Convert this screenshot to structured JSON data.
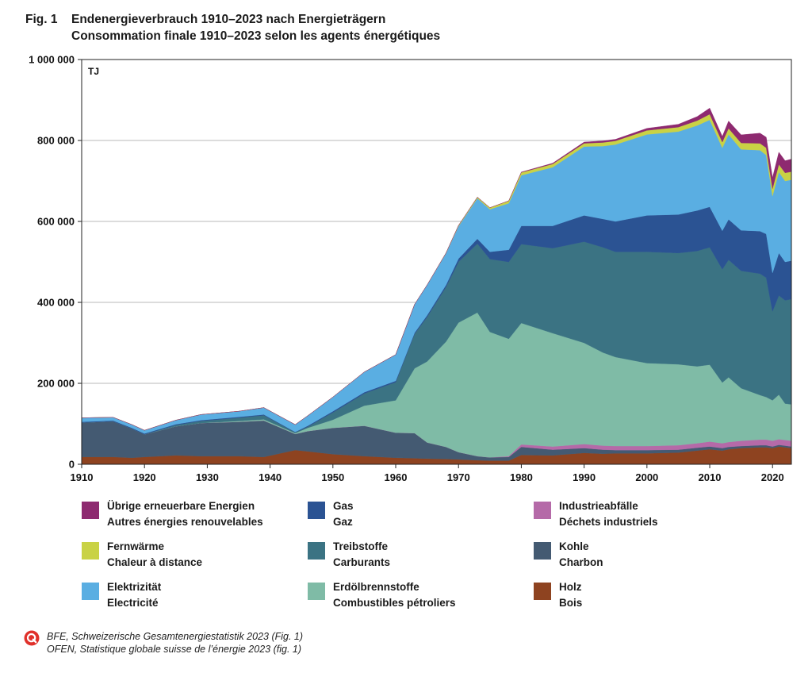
{
  "figure": {
    "number": "Fig. 1",
    "title_de": "Endenergieverbrauch 1910–2023 nach Energieträgern",
    "title_fr": "Consommation finale 1910–2023 selon les agents énergétiques"
  },
  "chart_data": {
    "type": "area",
    "stacked": true,
    "unit_label": "TJ",
    "xlim": [
      1910,
      2023
    ],
    "ylim": [
      0,
      1000000
    ],
    "x_ticks": [
      1910,
      1920,
      1930,
      1940,
      1950,
      1960,
      1970,
      1980,
      1990,
      2000,
      2010,
      2020
    ],
    "y_ticks": [
      0,
      200000,
      400000,
      600000,
      800000,
      1000000
    ],
    "y_tick_labels": [
      "0",
      "200 000",
      "400 000",
      "600 000",
      "800 000",
      "1 000 000"
    ],
    "grid": "horizontal",
    "x": [
      1910,
      1915,
      1918,
      1920,
      1925,
      1929,
      1935,
      1939,
      1944,
      1946,
      1950,
      1955,
      1960,
      1963,
      1965,
      1968,
      1970,
      1973,
      1975,
      1978,
      1980,
      1985,
      1990,
      1993,
      1995,
      2000,
      2005,
      2008,
      2010,
      2012,
      2013,
      2015,
      2018,
      2019,
      2020,
      2021,
      2022,
      2023
    ],
    "series": [
      {
        "name": "Holz",
        "name_fr": "Bois",
        "color": "#8e4320",
        "values": [
          18000,
          18000,
          16000,
          18000,
          22000,
          20000,
          20000,
          18000,
          35000,
          32000,
          25000,
          20000,
          16000,
          15000,
          14000,
          13000,
          12000,
          10000,
          9000,
          9000,
          23000,
          22000,
          28000,
          26000,
          27000,
          27000,
          29000,
          34000,
          37000,
          34000,
          37000,
          40000,
          42000,
          42000,
          40000,
          44000,
          42000,
          40000
        ]
      },
      {
        "name": "Kohle",
        "name_fr": "Charbon",
        "color": "#445a72",
        "values": [
          85000,
          88000,
          72000,
          56000,
          72000,
          82000,
          85000,
          90000,
          40000,
          50000,
          65000,
          75000,
          62000,
          62000,
          40000,
          30000,
          18000,
          10000,
          8000,
          9000,
          20000,
          14000,
          12000,
          10000,
          8000,
          8000,
          7000,
          7000,
          7000,
          6000,
          6000,
          5000,
          5000,
          5000,
          4000,
          4000,
          4000,
          4000
        ]
      },
      {
        "name": "Industrieabfälle",
        "name_fr": "Déchets industriels",
        "color": "#b56aa8",
        "values": [
          0,
          0,
          0,
          0,
          0,
          0,
          0,
          0,
          0,
          0,
          0,
          0,
          0,
          0,
          0,
          0,
          0,
          0,
          0,
          2000,
          6000,
          8000,
          10000,
          10000,
          10000,
          10000,
          11000,
          11000,
          12000,
          12000,
          12000,
          13000,
          14000,
          14000,
          14000,
          14000,
          14000,
          14000
        ]
      },
      {
        "name": "Erdölbrennstoffe",
        "name_fr": "Combustibles pétroliers",
        "color": "#7fbba6",
        "values": [
          0,
          0,
          0,
          0,
          0,
          0,
          2000,
          3000,
          2000,
          8000,
          20000,
          50000,
          80000,
          160000,
          200000,
          260000,
          320000,
          355000,
          310000,
          290000,
          300000,
          280000,
          250000,
          230000,
          220000,
          205000,
          200000,
          190000,
          190000,
          150000,
          160000,
          130000,
          110000,
          105000,
          100000,
          110000,
          90000,
          90000
        ]
      },
      {
        "name": "Treibstoffe",
        "name_fr": "Carburants",
        "color": "#3b7383",
        "values": [
          0,
          0,
          0,
          0,
          3000,
          5000,
          8000,
          10000,
          2000,
          3000,
          18000,
          30000,
          45000,
          85000,
          110000,
          135000,
          150000,
          170000,
          180000,
          190000,
          195000,
          210000,
          250000,
          260000,
          260000,
          275000,
          275000,
          285000,
          290000,
          280000,
          290000,
          290000,
          300000,
          295000,
          220000,
          245000,
          255000,
          260000
        ]
      },
      {
        "name": "Gas",
        "name_fr": "Gaz",
        "color": "#2b5393",
        "values": [
          2000,
          2000,
          2000,
          2000,
          2000,
          2000,
          2000,
          2000,
          1000,
          2000,
          3000,
          3000,
          3000,
          3000,
          4000,
          5000,
          8000,
          12000,
          18000,
          30000,
          45000,
          55000,
          65000,
          70000,
          75000,
          90000,
          95000,
          100000,
          100000,
          95000,
          100000,
          100000,
          105000,
          108000,
          95000,
          105000,
          95000,
          95000
        ]
      },
      {
        "name": "Elektrizität",
        "name_fr": "Electricité",
        "color": "#5aaee2",
        "values": [
          10000,
          8000,
          8000,
          8000,
          10000,
          14000,
          14000,
          17000,
          18000,
          25000,
          35000,
          50000,
          65000,
          70000,
          75000,
          78000,
          80000,
          100000,
          105000,
          115000,
          125000,
          145000,
          170000,
          180000,
          190000,
          200000,
          205000,
          210000,
          215000,
          205000,
          210000,
          200000,
          200000,
          195000,
          190000,
          200000,
          200000,
          200000
        ]
      },
      {
        "name": "Fernwärme",
        "name_fr": "Chaleur à distance",
        "color": "#c9d245",
        "values": [
          0,
          0,
          0,
          0,
          0,
          0,
          0,
          0,
          0,
          0,
          0,
          0,
          0,
          0,
          0,
          1000,
          2000,
          3000,
          4000,
          6000,
          7000,
          8000,
          8000,
          9000,
          9000,
          10000,
          11000,
          12000,
          14000,
          14000,
          15000,
          16000,
          17000,
          18000,
          18000,
          19000,
          20000,
          20000
        ]
      },
      {
        "name": "Übrige erneuerbare Energien",
        "name_fr": "Autres énergies renouvelables",
        "color": "#8e2a70",
        "values": [
          0,
          0,
          0,
          0,
          0,
          0,
          0,
          0,
          0,
          0,
          0,
          0,
          0,
          0,
          0,
          0,
          0,
          0,
          0,
          0,
          1000,
          2000,
          3000,
          4000,
          4000,
          5000,
          7000,
          10000,
          15000,
          14000,
          18000,
          20000,
          25000,
          26000,
          27000,
          30000,
          30000,
          31000
        ]
      }
    ]
  },
  "legend_order": [
    [
      "Übrige erneuerbare Energien",
      "Fernwärme",
      "Elektrizität"
    ],
    [
      "Gas",
      "Treibstoffe",
      "Erdölbrennstoffe"
    ],
    [
      "Industrieabfälle",
      "Kohle",
      "Holz"
    ]
  ],
  "source": {
    "line_de": "BFE, Schweizerische Gesamtenergiestatistik 2023 (Fig. 1)",
    "line_fr": "OFEN, Statistique globale suisse de l’énergie 2023 (fig. 1)",
    "logo_icon": "q-logo-icon",
    "logo_color": "#e0312b"
  }
}
